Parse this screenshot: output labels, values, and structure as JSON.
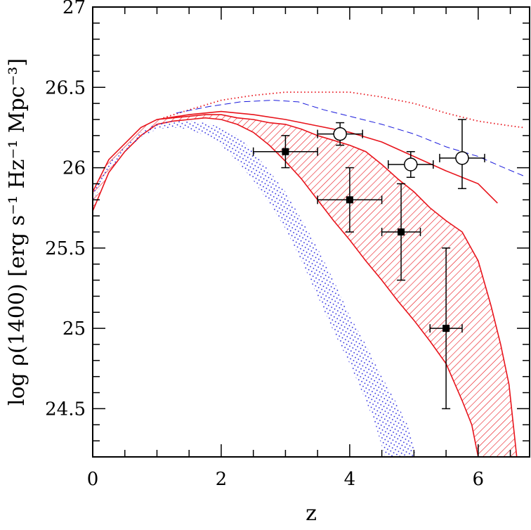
{
  "chart_data": {
    "type": "line",
    "title": "",
    "xlabel": "z",
    "ylabel": "log  ρ(1400)  [erg s⁻¹ Hz⁻¹ Mpc⁻³]",
    "xlim": [
      0,
      6.8
    ],
    "ylim": [
      24.2,
      27
    ],
    "xticks": [
      {
        "value": 0,
        "label": "0"
      },
      {
        "value": 2,
        "label": "2"
      },
      {
        "value": 4,
        "label": "4"
      },
      {
        "value": 6,
        "label": "6"
      }
    ],
    "yticks": [
      {
        "value": 24.5,
        "label": "24.5"
      },
      {
        "value": 25,
        "label": "25"
      },
      {
        "value": 25.5,
        "label": "25.5"
      },
      {
        "value": 26,
        "label": "26"
      },
      {
        "value": 26.5,
        "label": "26.5"
      },
      {
        "value": 27,
        "label": "27"
      }
    ],
    "colors": {
      "red": "#e8141c",
      "blue": "#1a1adc",
      "black": "#000000"
    },
    "bands": [
      {
        "color": "red",
        "fill": "hatch",
        "upper": [
          [
            0,
            25.85
          ],
          [
            0.25,
            26.05
          ],
          [
            0.5,
            26.15
          ],
          [
            0.75,
            26.25
          ],
          [
            1.0,
            26.3
          ],
          [
            1.25,
            26.31
          ],
          [
            1.5,
            26.32
          ],
          [
            1.75,
            26.33
          ],
          [
            2.0,
            26.33
          ],
          [
            2.25,
            26.31
          ],
          [
            2.5,
            26.3
          ],
          [
            2.75,
            26.28
          ],
          [
            3.0,
            26.27
          ],
          [
            3.25,
            26.24
          ],
          [
            3.5,
            26.2
          ],
          [
            3.75,
            26.17
          ],
          [
            4.0,
            26.14
          ],
          [
            4.25,
            26.1
          ],
          [
            4.5,
            26.02
          ],
          [
            4.75,
            25.93
          ],
          [
            5.0,
            25.85
          ],
          [
            5.25,
            25.75
          ],
          [
            5.5,
            25.67
          ],
          [
            5.75,
            25.6
          ],
          [
            6.0,
            25.42
          ],
          [
            6.2,
            25.14
          ],
          [
            6.35,
            24.9
          ],
          [
            6.48,
            24.65
          ],
          [
            6.6,
            24.2
          ]
        ],
        "lower": [
          [
            0,
            25.73
          ],
          [
            0.25,
            25.97
          ],
          [
            0.5,
            26.1
          ],
          [
            0.75,
            26.2
          ],
          [
            1.0,
            26.27
          ],
          [
            1.25,
            26.29
          ],
          [
            1.5,
            26.3
          ],
          [
            1.75,
            26.31
          ],
          [
            2.0,
            26.3
          ],
          [
            2.25,
            26.27
          ],
          [
            2.5,
            26.22
          ],
          [
            2.75,
            26.14
          ],
          [
            3.0,
            26.04
          ],
          [
            3.25,
            25.93
          ],
          [
            3.5,
            25.8
          ],
          [
            3.75,
            25.67
          ],
          [
            4.0,
            25.55
          ],
          [
            4.25,
            25.42
          ],
          [
            4.5,
            25.3
          ],
          [
            4.75,
            25.17
          ],
          [
            5.0,
            25.05
          ],
          [
            5.25,
            24.92
          ],
          [
            5.5,
            24.78
          ],
          [
            5.75,
            24.55
          ],
          [
            5.9,
            24.4
          ],
          [
            6.0,
            24.2
          ]
        ]
      },
      {
        "color": "blue",
        "fill": "dots",
        "upper": [
          [
            0,
            25.85
          ],
          [
            0.25,
            26.03
          ],
          [
            0.5,
            26.13
          ],
          [
            0.75,
            26.22
          ],
          [
            1.0,
            26.28
          ],
          [
            1.25,
            26.29
          ],
          [
            1.5,
            26.29
          ],
          [
            1.75,
            26.28
          ],
          [
            2.0,
            26.25
          ],
          [
            2.25,
            26.2
          ],
          [
            2.5,
            26.1
          ],
          [
            2.75,
            25.98
          ],
          [
            3.0,
            25.85
          ],
          [
            3.25,
            25.68
          ],
          [
            3.5,
            25.5
          ],
          [
            3.75,
            25.3
          ],
          [
            4.0,
            25.08
          ],
          [
            4.25,
            24.9
          ],
          [
            4.5,
            24.7
          ],
          [
            4.75,
            24.52
          ],
          [
            4.9,
            24.4
          ],
          [
            5.05,
            24.2
          ]
        ],
        "lower": [
          [
            0,
            25.79
          ],
          [
            0.25,
            25.98
          ],
          [
            0.5,
            26.1
          ],
          [
            0.75,
            26.19
          ],
          [
            1.0,
            26.24
          ],
          [
            1.25,
            26.25
          ],
          [
            1.5,
            26.24
          ],
          [
            1.75,
            26.2
          ],
          [
            2.0,
            26.14
          ],
          [
            2.25,
            26.04
          ],
          [
            2.5,
            25.92
          ],
          [
            2.75,
            25.78
          ],
          [
            3.0,
            25.62
          ],
          [
            3.25,
            25.42
          ],
          [
            3.5,
            25.2
          ],
          [
            3.75,
            24.98
          ],
          [
            4.0,
            24.78
          ],
          [
            4.25,
            24.55
          ],
          [
            4.4,
            24.4
          ],
          [
            4.55,
            24.2
          ]
        ]
      }
    ],
    "lines": [
      {
        "style": "dotted",
        "color": "red",
        "points": [
          [
            1.1,
            26.31
          ],
          [
            1.5,
            26.36
          ],
          [
            2.0,
            26.42
          ],
          [
            2.5,
            26.45
          ],
          [
            3.0,
            26.47
          ],
          [
            3.5,
            26.47
          ],
          [
            4.0,
            26.47
          ],
          [
            4.5,
            26.44
          ],
          [
            5.0,
            26.4
          ],
          [
            5.5,
            26.34
          ],
          [
            6.0,
            26.29
          ],
          [
            6.5,
            26.26
          ],
          [
            6.7,
            26.25
          ]
        ]
      },
      {
        "style": "dashed",
        "color": "blue",
        "points": [
          [
            1.3,
            26.34
          ],
          [
            1.8,
            26.38
          ],
          [
            2.3,
            26.41
          ],
          [
            2.8,
            26.42
          ],
          [
            3.2,
            26.41
          ],
          [
            3.6,
            26.36
          ],
          [
            4.0,
            26.32
          ],
          [
            4.5,
            26.27
          ],
          [
            5.0,
            26.21
          ],
          [
            5.5,
            26.13
          ],
          [
            6.0,
            26.07
          ],
          [
            6.4,
            26.0
          ],
          [
            6.7,
            25.95
          ]
        ]
      },
      {
        "style": "solid",
        "color": "red",
        "points": [
          [
            1.0,
            26.3
          ],
          [
            1.5,
            26.33
          ],
          [
            2.0,
            26.35
          ],
          [
            2.5,
            26.33
          ],
          [
            3.0,
            26.3
          ],
          [
            3.5,
            26.26
          ],
          [
            4.0,
            26.22
          ],
          [
            4.5,
            26.16
          ],
          [
            5.0,
            26.07
          ],
          [
            5.5,
            25.98
          ],
          [
            6.0,
            25.9
          ],
          [
            6.3,
            25.78
          ]
        ]
      }
    ],
    "points_filled": [
      {
        "x": 3.0,
        "y": 26.1,
        "xerr": [
          0.5,
          0.5
        ],
        "yerr": [
          0.1,
          0.1
        ]
      },
      {
        "x": 4.0,
        "y": 25.8,
        "xerr": [
          0.5,
          0.5
        ],
        "yerr": [
          0.2,
          0.2
        ]
      },
      {
        "x": 4.8,
        "y": 25.6,
        "xerr": [
          0.3,
          0.3
        ],
        "yerr": [
          0.3,
          0.3
        ]
      },
      {
        "x": 5.5,
        "y": 25.0,
        "xerr": [
          0.25,
          0.25
        ],
        "yerr": [
          0.5,
          0.5
        ]
      }
    ],
    "points_open": [
      {
        "x": 3.85,
        "y": 26.21,
        "xerr": [
          0.35,
          0.35
        ],
        "yerr": [
          0.07,
          0.07
        ]
      },
      {
        "x": 4.95,
        "y": 26.02,
        "xerr": [
          0.35,
          0.35
        ],
        "yerr": [
          0.08,
          0.08
        ]
      },
      {
        "x": 5.75,
        "y": 26.06,
        "xerr": [
          0.35,
          0.35
        ],
        "yerr": [
          0.19,
          0.24
        ]
      }
    ]
  }
}
